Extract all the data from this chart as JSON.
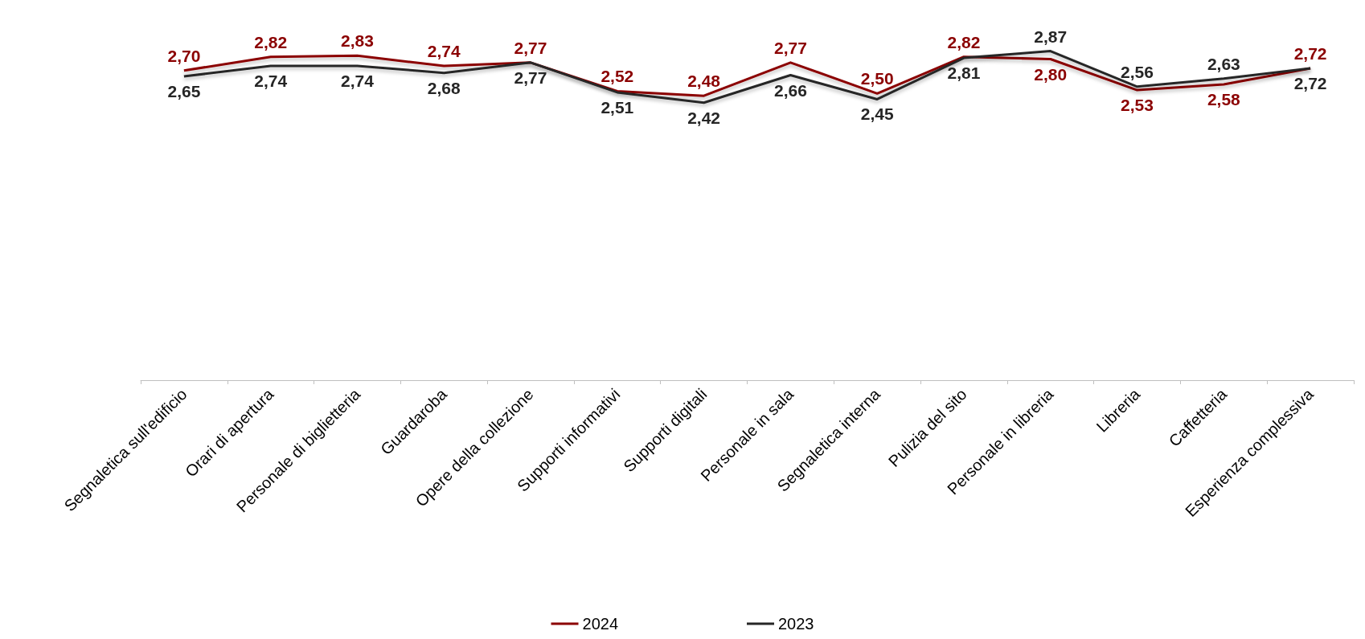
{
  "chart_data": {
    "type": "line",
    "categories": [
      "Segnaletica sull'edificio",
      "Orari di apertura",
      "Personale di biglietteria",
      "Guardaroba",
      "Opere della collezione",
      "Supporti informativi",
      "Supporti digitali",
      "Personale in sala",
      "Segnaletica interna",
      "Pulizia del sito",
      "Personale in libreria",
      "Libreria",
      "Caffetteria",
      "Esperienza complessiva"
    ],
    "series": [
      {
        "name": "2024",
        "color": "#8b0000",
        "values": [
          2.7,
          2.82,
          2.83,
          2.74,
          2.77,
          2.52,
          2.48,
          2.77,
          2.5,
          2.82,
          2.8,
          2.53,
          2.58,
          2.72
        ],
        "value_labels": [
          "2,70",
          "2,82",
          "2,83",
          "2,74",
          "2,77",
          "2,52",
          "2,48",
          "2,77",
          "2,50",
          "2,82",
          "2,80",
          "2,53",
          "2,58",
          "2,72"
        ]
      },
      {
        "name": "2023",
        "color": "#262626",
        "values": [
          2.65,
          2.74,
          2.74,
          2.68,
          2.77,
          2.51,
          2.42,
          2.66,
          2.45,
          2.81,
          2.87,
          2.56,
          2.63,
          2.72
        ],
        "value_labels": [
          "2,65",
          "2,74",
          "2,74",
          "2,68",
          "2,77",
          "2,51",
          "2,42",
          "2,66",
          "2,45",
          "2,81",
          "2,87",
          "2,56",
          "2,63",
          "2,72"
        ]
      }
    ],
    "tick_labels": "x",
    "grid": false,
    "legend": "bottom",
    "marker": "none",
    "line_style": "solid"
  }
}
